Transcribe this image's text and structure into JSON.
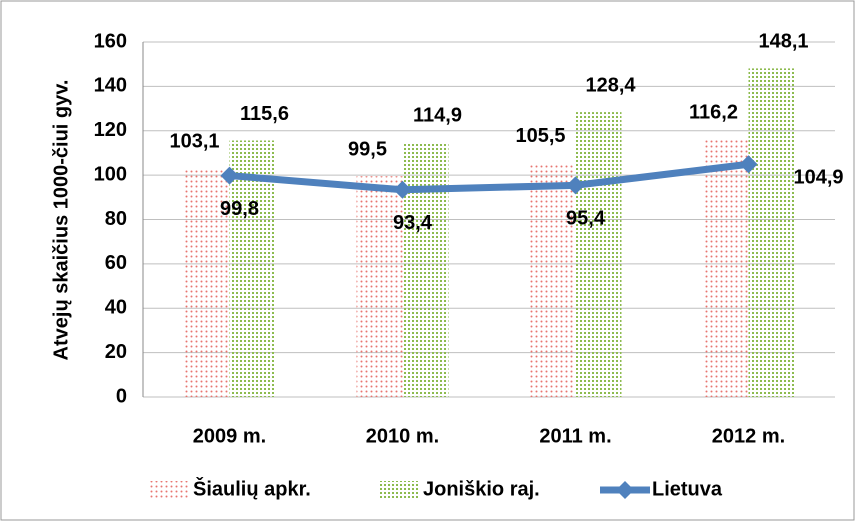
{
  "chart_data": {
    "type": "bar",
    "y_label": "Atvejų skaičius 1000-čiui gyv.",
    "categories": [
      "2009 m.",
      "2010 m.",
      "2011 m.",
      "2012 m."
    ],
    "series": [
      {
        "name": "Šiaulių apkr.",
        "color": "#e8746e",
        "values": [
          103.1,
          99.5,
          105.5,
          116.2
        ],
        "value_labels": [
          "103,1",
          "99,5",
          "105,5",
          "116,2"
        ]
      },
      {
        "name": "Joniškio raj.",
        "color": "#8dbb4f",
        "values": [
          115.6,
          114.9,
          128.4,
          148.1
        ],
        "value_labels": [
          "115,6",
          "114,9",
          "128,4",
          "148,1"
        ]
      },
      {
        "name": "Lietuva",
        "type": "line",
        "color": "#4f81bd",
        "values": [
          99.8,
          93.4,
          95.4,
          104.9
        ],
        "value_labels": [
          "99,8",
          "93,4",
          "95,4",
          "104,9"
        ]
      }
    ],
    "ylim": [
      0,
      160
    ],
    "yticks": [
      0,
      20,
      40,
      60,
      80,
      100,
      120,
      140,
      160
    ],
    "grid": true,
    "legend": "bottom"
  }
}
